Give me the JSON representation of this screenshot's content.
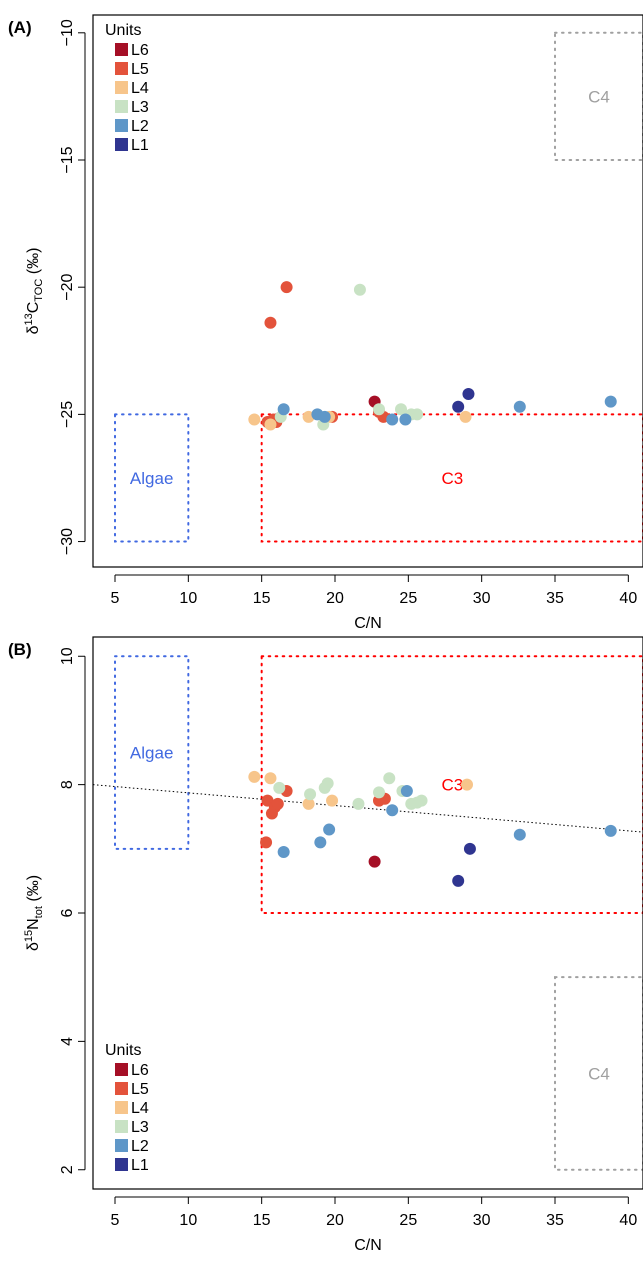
{
  "chart_data": [
    {
      "panel_label": "(A)",
      "type": "scatter",
      "xlabel": "C/N",
      "ylabel": {
        "base": "δ",
        "sup": "13",
        "main": "C",
        "sub": "TOC",
        "unit": " (‰)"
      },
      "xlim": [
        3.5,
        41
      ],
      "ylim": [
        -31,
        -9.3
      ],
      "xticks": [
        5,
        10,
        15,
        20,
        25,
        30,
        35,
        40
      ],
      "yticks": [
        -10,
        -15,
        -20,
        -25,
        -30
      ],
      "ytick_labels": [
        "−10",
        "−15",
        "−20",
        "−25",
        "−30"
      ],
      "legend": {
        "title": "Units",
        "placement": "top-left",
        "entries": [
          "L6",
          "L5",
          "L4",
          "L3",
          "L2",
          "L1"
        ]
      },
      "colors": {
        "L6": "#a50f26",
        "L5": "#e3533b",
        "L4": "#f7c58b",
        "L3": "#c8e2c4",
        "L2": "#5f97c8",
        "L1": "#2f3590"
      },
      "regions": [
        {
          "label": "Algae",
          "x": [
            5,
            10
          ],
          "y": [
            -30,
            -25
          ],
          "color": "#4169e1"
        },
        {
          "label": "C3",
          "x": [
            15,
            41
          ],
          "y": [
            -30,
            -25
          ],
          "color": "#ff0000"
        },
        {
          "label": "C4",
          "x": [
            35,
            41
          ],
          "y": [
            -15,
            -10
          ],
          "color": "#a0a0a0"
        }
      ],
      "series": [
        {
          "name": "L6",
          "points": [
            [
              22.7,
              -24.5
            ]
          ]
        },
        {
          "name": "L5",
          "points": [
            [
              15.6,
              -21.4
            ],
            [
              16.7,
              -20.0
            ],
            [
              15.4,
              -25.3
            ],
            [
              15.8,
              -25.2
            ],
            [
              16.0,
              -25.3
            ],
            [
              19.8,
              -25.1
            ],
            [
              23.0,
              -24.9
            ],
            [
              23.3,
              -25.1
            ]
          ]
        },
        {
          "name": "L4",
          "points": [
            [
              14.5,
              -25.2
            ],
            [
              15.6,
              -25.4
            ],
            [
              18.2,
              -25.1
            ],
            [
              19.6,
              -25.1
            ],
            [
              28.9,
              -25.1
            ]
          ]
        },
        {
          "name": "L3",
          "points": [
            [
              21.7,
              -20.1
            ],
            [
              16.3,
              -25.1
            ],
            [
              19.2,
              -25.4
            ],
            [
              23.0,
              -24.8
            ],
            [
              24.5,
              -24.8
            ],
            [
              25.2,
              -25.0
            ],
            [
              25.6,
              -25.0
            ]
          ]
        },
        {
          "name": "L2",
          "points": [
            [
              16.5,
              -24.8
            ],
            [
              18.8,
              -25.0
            ],
            [
              19.3,
              -25.1
            ],
            [
              23.9,
              -25.2
            ],
            [
              24.8,
              -25.2
            ],
            [
              32.6,
              -24.7
            ],
            [
              38.8,
              -24.5
            ]
          ]
        },
        {
          "name": "L1",
          "points": [
            [
              28.4,
              -24.7
            ],
            [
              29.1,
              -24.2
            ]
          ]
        }
      ]
    },
    {
      "panel_label": "(B)",
      "type": "scatter",
      "xlabel": "C/N",
      "ylabel": {
        "base": "δ",
        "sup": "15",
        "main": "N",
        "sub": "tot",
        "unit": " (‰)"
      },
      "xlim": [
        3.5,
        41
      ],
      "ylim": [
        1.7,
        10.3
      ],
      "xticks": [
        5,
        10,
        15,
        20,
        25,
        30,
        35,
        40
      ],
      "yticks": [
        2,
        4,
        6,
        8,
        10
      ],
      "ytick_labels": [
        "2",
        "4",
        "6",
        "8",
        "10"
      ],
      "legend": {
        "title": "Units",
        "placement": "bottom-left",
        "entries": [
          "L6",
          "L5",
          "L4",
          "L3",
          "L2",
          "L1"
        ]
      },
      "colors": {
        "L6": "#a50f26",
        "L5": "#e3533b",
        "L4": "#f7c58b",
        "L3": "#c8e2c4",
        "L2": "#5f97c8",
        "L1": "#2f3590"
      },
      "regions": [
        {
          "label": "Algae",
          "x": [
            5,
            10
          ],
          "y": [
            7,
            10
          ],
          "color": "#4169e1"
        },
        {
          "label": "C3",
          "x": [
            15,
            41
          ],
          "y": [
            6,
            10
          ],
          "color": "#ff0000"
        },
        {
          "label": "C4",
          "x": [
            35,
            41
          ],
          "y": [
            2,
            5
          ],
          "color": "#a0a0a0"
        }
      ],
      "trendline": {
        "x": [
          3.5,
          41
        ],
        "y": [
          8.0,
          7.26
        ]
      },
      "series": [
        {
          "name": "L6",
          "points": [
            [
              22.7,
              6.8
            ]
          ]
        },
        {
          "name": "L5",
          "points": [
            [
              15.3,
              7.1
            ],
            [
              15.4,
              7.75
            ],
            [
              15.7,
              7.55
            ],
            [
              15.9,
              7.65
            ],
            [
              16.1,
              7.7
            ],
            [
              16.7,
              7.9
            ],
            [
              23.0,
              7.75
            ],
            [
              23.4,
              7.78
            ]
          ]
        },
        {
          "name": "L4",
          "points": [
            [
              14.5,
              8.12
            ],
            [
              15.6,
              8.1
            ],
            [
              18.2,
              7.7
            ],
            [
              19.8,
              7.75
            ],
            [
              29.0,
              8.0
            ]
          ]
        },
        {
          "name": "L3",
          "points": [
            [
              16.2,
              7.95
            ],
            [
              18.3,
              7.85
            ],
            [
              19.3,
              7.95
            ],
            [
              19.5,
              8.02
            ],
            [
              21.6,
              7.7
            ],
            [
              23.0,
              7.88
            ],
            [
              23.7,
              8.1
            ],
            [
              24.6,
              7.9
            ],
            [
              25.2,
              7.7
            ],
            [
              25.6,
              7.72
            ],
            [
              25.9,
              7.75
            ]
          ]
        },
        {
          "name": "L2",
          "points": [
            [
              16.5,
              6.95
            ],
            [
              19.0,
              7.1
            ],
            [
              19.6,
              7.3
            ],
            [
              23.9,
              7.6
            ],
            [
              24.9,
              7.9
            ],
            [
              32.6,
              7.22
            ],
            [
              38.8,
              7.28
            ]
          ]
        },
        {
          "name": "L1",
          "points": [
            [
              28.4,
              6.5
            ],
            [
              29.2,
              7.0
            ]
          ]
        }
      ]
    }
  ]
}
